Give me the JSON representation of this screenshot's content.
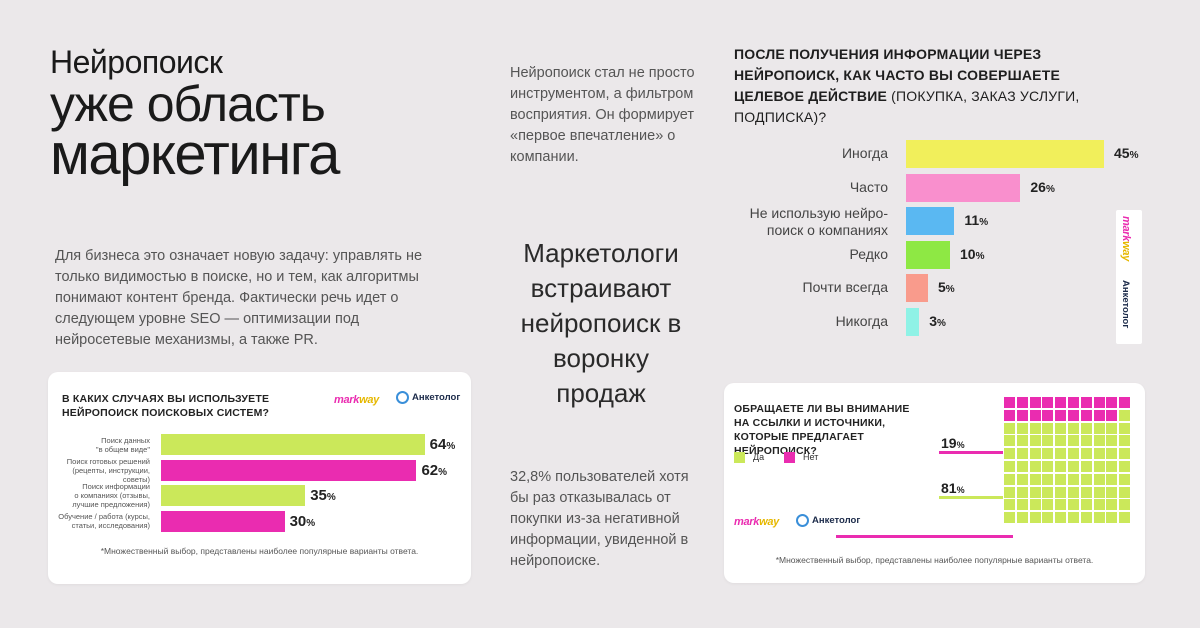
{
  "headline": {
    "line1": "Нейропоиск",
    "line2": "уже область",
    "line3": "маркетинга"
  },
  "intro_text": "Нейропоиск стал не просто инструментом, а фильтром восприятия. Он формирует «первое впечатление» о компании.",
  "business_text": "Для бизнеса это означает новую задачу: управлять не только видимостью в поиске, но и тем, как алгоритмы понимают контент бренда. Фактически речь идет о следующем уровне SEO — оптимизации под нейросетевые механизмы, а также PR.",
  "center_big": "Маркетологи встраивают нейропоиск в воронку продаж",
  "stat_text": "32,8% пользователей хотя бы раз отказывалась от покупки из-за негативной информации, увиденной в нейропоиске.",
  "brands": {
    "markway": "markway",
    "anketolog": "Анкетолог"
  },
  "colors": {
    "yellow": "#e9ef5a",
    "pink": "#f06dbe",
    "lime": "#cbe85a",
    "magenta": "#ea2cb0",
    "blue": "#5ab8f2",
    "green": "#8ee844",
    "salmon": "#f99b8c",
    "mint": "#8ff2e6"
  },
  "chart_data": [
    {
      "id": "action_frequency",
      "type": "bar",
      "title_bold": "ПОСЛЕ ПОЛУЧЕНИЯ ИНФОРМАЦИИ ЧЕРЕЗ НЕЙРОПОИСК, КАК ЧАСТО ВЫ СОВЕРШАЕТЕ ЦЕЛЕВОЕ ДЕЙСТВИЕ",
      "title_rest": " (ПОКУПКА, ЗАКАЗ УСЛУГИ, ПОДПИСКА)?",
      "categories": [
        "Иногда",
        "Часто",
        "Не использую нейро-\nпоиск о компаниях",
        "Редко",
        "Почти всегда",
        "Никогда"
      ],
      "values": [
        45,
        26,
        11,
        10,
        5,
        3
      ],
      "unit": "%",
      "bar_colors": [
        "#f1ef5b",
        "#f98fcd",
        "#5ab8f2",
        "#8ee844",
        "#f99b8c",
        "#8ff2e6"
      ]
    },
    {
      "id": "use_cases",
      "type": "bar",
      "title": "В КАКИХ СЛУЧАЯХ ВЫ ИСПОЛЬЗУЕТЕ НЕЙРОПОИСК ПОИСКОВЫХ СИСТЕМ?",
      "categories": [
        "Поиск данных\n\"в общем виде\"",
        "Поиск готовых решений\n(рецепты, инструкции,\nсоветы)",
        "Поиск информации\nо компаниях (отзывы,\nлучшие предложения)",
        "Обучение / работа (курсы,\nстатьи, исследования)"
      ],
      "values": [
        64,
        62,
        35,
        30
      ],
      "unit": "%",
      "bar_colors": [
        "#cbe85a",
        "#ea2cb0",
        "#cbe85a",
        "#ea2cb0"
      ],
      "footnote": "*Множественный выбор, представлены наиболее популярные варианты ответа."
    },
    {
      "id": "sources_attention",
      "type": "waffle",
      "title": "ОБРАЩАЕТЕ ЛИ ВЫ ВНИМАНИЕ НА ССЫЛКИ И ИСТОЧНИКИ, КОТОРЫЕ ПРЕДЛАГАЕТ НЕЙРОПОИСК?",
      "categories": [
        "Да",
        "Нет"
      ],
      "values": [
        81,
        19
      ],
      "unit": "%",
      "colors": [
        "#cbe85a",
        "#ea2cb0"
      ],
      "footnote": "*Множественный выбор, представлены наиболее популярные варианты ответа."
    }
  ]
}
